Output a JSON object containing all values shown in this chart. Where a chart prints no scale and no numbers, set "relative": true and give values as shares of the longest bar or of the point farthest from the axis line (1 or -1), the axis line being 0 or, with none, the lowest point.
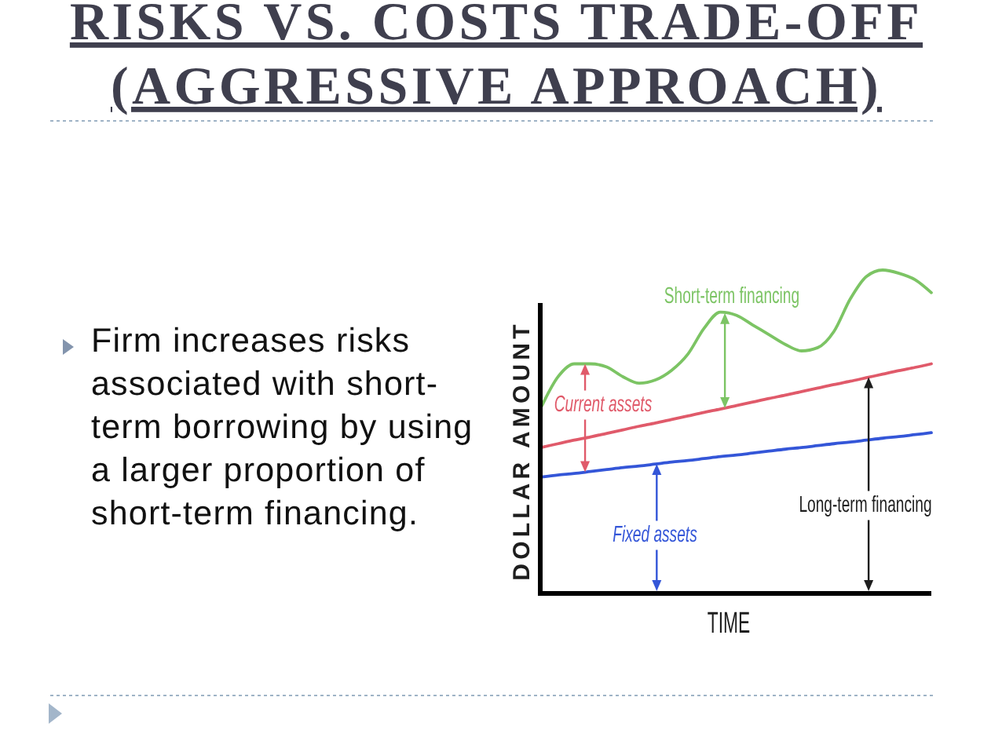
{
  "chart_data": {
    "type": "line",
    "title": "RISKS VS. COSTS TRADE-OFF (AGGRESSIVE APPROACH)",
    "xlabel": "TIME",
    "ylabel": "DOLLAR AMOUNT",
    "relative": true,
    "line_style": "solid",
    "categories": [
      null,
      null,
      null,
      null,
      null,
      null,
      null,
      null,
      null,
      null,
      null,
      null,
      null,
      null,
      null,
      null,
      null,
      null,
      null,
      null,
      null,
      null,
      null,
      null,
      null
    ],
    "series": [
      {
        "color": "#7cc464",
        "values": [
          0.58,
          0.67,
          0.71,
          0.71,
          0.7,
          0.67,
          0.65,
          0.66,
          0.69,
          0.74,
          0.82,
          0.87,
          0.86,
          0.83,
          0.8,
          0.77,
          0.75,
          0.76,
          0.81,
          0.91,
          0.98,
          1.0,
          0.99,
          0.97,
          0.93
        ]
      },
      {
        "color": "#e05a6a",
        "values": [
          0.452,
          0.463,
          0.474,
          0.484,
          0.495,
          0.506,
          0.517,
          0.527,
          0.538,
          0.549,
          0.56,
          0.57,
          0.581,
          0.592,
          0.603,
          0.613,
          0.624,
          0.635,
          0.646,
          0.656,
          0.667,
          0.678,
          0.689,
          0.699,
          0.71
        ]
      },
      {
        "color": "#3456d8",
        "values": [
          0.36,
          0.366,
          0.371,
          0.377,
          0.383,
          0.389,
          0.394,
          0.4,
          0.406,
          0.411,
          0.417,
          0.423,
          0.428,
          0.434,
          0.44,
          0.446,
          0.451,
          0.457,
          0.463,
          0.468,
          0.474,
          0.48,
          0.485,
          0.491,
          0.497
        ]
      }
    ],
    "annotations": [
      "Firm increases risks associated with short-term borrowing by using a larger proportion of short-term financing.",
      "Short-term financing",
      "Current assets",
      "Fixed assets",
      "Long-term financing"
    ]
  }
}
